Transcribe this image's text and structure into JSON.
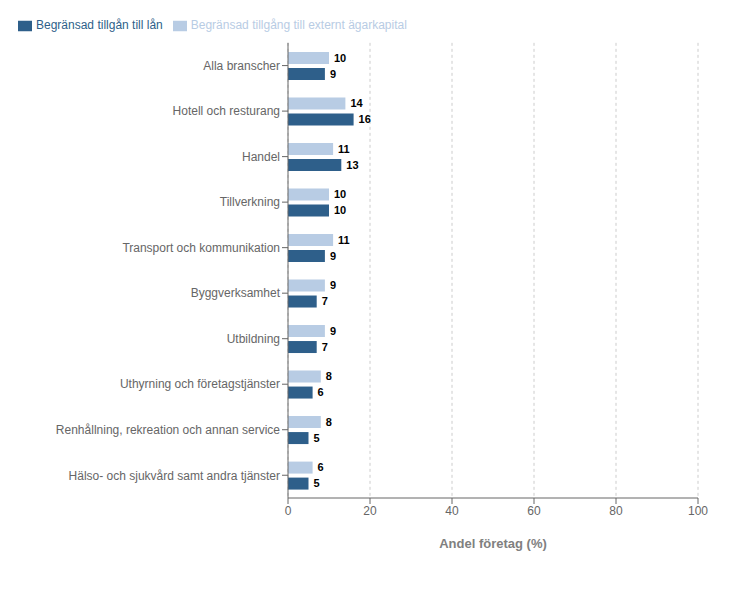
{
  "chart_data": {
    "type": "bar",
    "orientation": "horizontal",
    "categories": [
      "Alla branscher",
      "Hotell och resturang",
      "Handel",
      "Tillverkning",
      "Transport och kommunikation",
      "Byggverksamhet",
      "Utbildning",
      "Uthyrning och företagstjänster",
      "Renhållning, rekreation och annan service",
      "Hälso- och sjukvård samt andra tjänster"
    ],
    "series": [
      {
        "name": "Begränsad tillgång till externt ägarkapital",
        "color": "#b8cce4",
        "values": [
          10,
          14,
          11,
          10,
          11,
          9,
          9,
          8,
          8,
          6
        ]
      },
      {
        "name": "Begränsad tillgån till lån",
        "color": "#2e5f8a",
        "values": [
          9,
          16,
          13,
          10,
          9,
          7,
          7,
          6,
          5,
          5
        ]
      }
    ],
    "xlabel": "Andel företag (%)",
    "xlim": [
      0,
      100
    ],
    "xticks": [
      0,
      20,
      40,
      60,
      80,
      100
    ],
    "grid": true,
    "legend": "upper left",
    "data_labels": true
  }
}
